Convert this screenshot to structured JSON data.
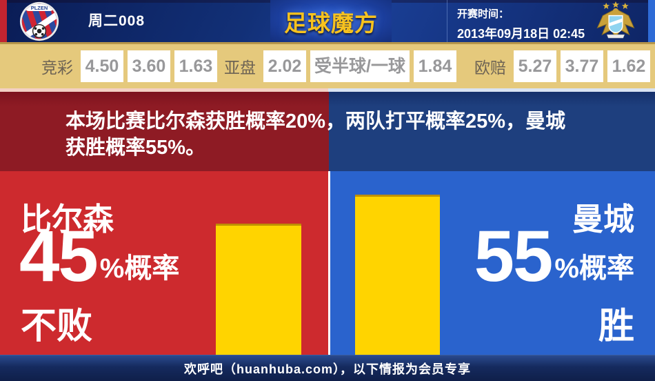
{
  "header": {
    "match_code": "周二008",
    "logo_text": "足球魔方",
    "kickoff_label": "开赛时间：",
    "kickoff_time": "2013年09月18日 02:45",
    "home_crest": "fc-viktoria-plzen-crest",
    "home_crest_text": "PLZEN",
    "away_crest": "manchester-city-crest"
  },
  "odds": {
    "jingcai": {
      "label": "竞彩",
      "values": [
        "4.50",
        "3.60",
        "1.63"
      ]
    },
    "yapan": {
      "label": "亚盘",
      "values": [
        "2.02",
        "受半球/一球",
        "1.84"
      ]
    },
    "oupei": {
      "label": "欧赔",
      "values": [
        "5.27",
        "3.77",
        "1.62"
      ]
    }
  },
  "summary": {
    "line1": "本场比赛比尔森获胜概率20%，两队打平概率25%，曼城",
    "line2": "获胜概率55%。"
  },
  "home": {
    "name": "比尔森",
    "percent": "45",
    "suffix": "%概率",
    "outcome": "不败"
  },
  "away": {
    "name": "曼城",
    "percent": "55",
    "suffix": "%概率",
    "outcome": "胜"
  },
  "footer": {
    "text": "欢呼吧（huanhuba.com），以下情报为会员专享"
  },
  "colors": {
    "header_navy": "#122f75",
    "logo_gold": "#f7c21e",
    "odds_bg": "#e5c97c",
    "odds_value_gray": "#98989a",
    "dark_red": "#8e1b24",
    "dark_blue": "#1e3f7e",
    "bright_red": "#cd2a2e",
    "bright_blue": "#2a63cd",
    "bar_yellow": "#ffd400",
    "footer_navy": "#16295c",
    "edge_red": "#c22430",
    "edge_blue": "#2e6bd6"
  },
  "chart_data": {
    "type": "bar",
    "categories": [
      "比尔森 不败",
      "曼城 胜"
    ],
    "values": [
      45,
      55
    ],
    "unit": "%",
    "ylim": [
      0,
      100
    ],
    "bar_color": "#ffd400",
    "probabilities": {
      "比尔森获胜": 20,
      "打平": 25,
      "曼城获胜": 55
    }
  }
}
